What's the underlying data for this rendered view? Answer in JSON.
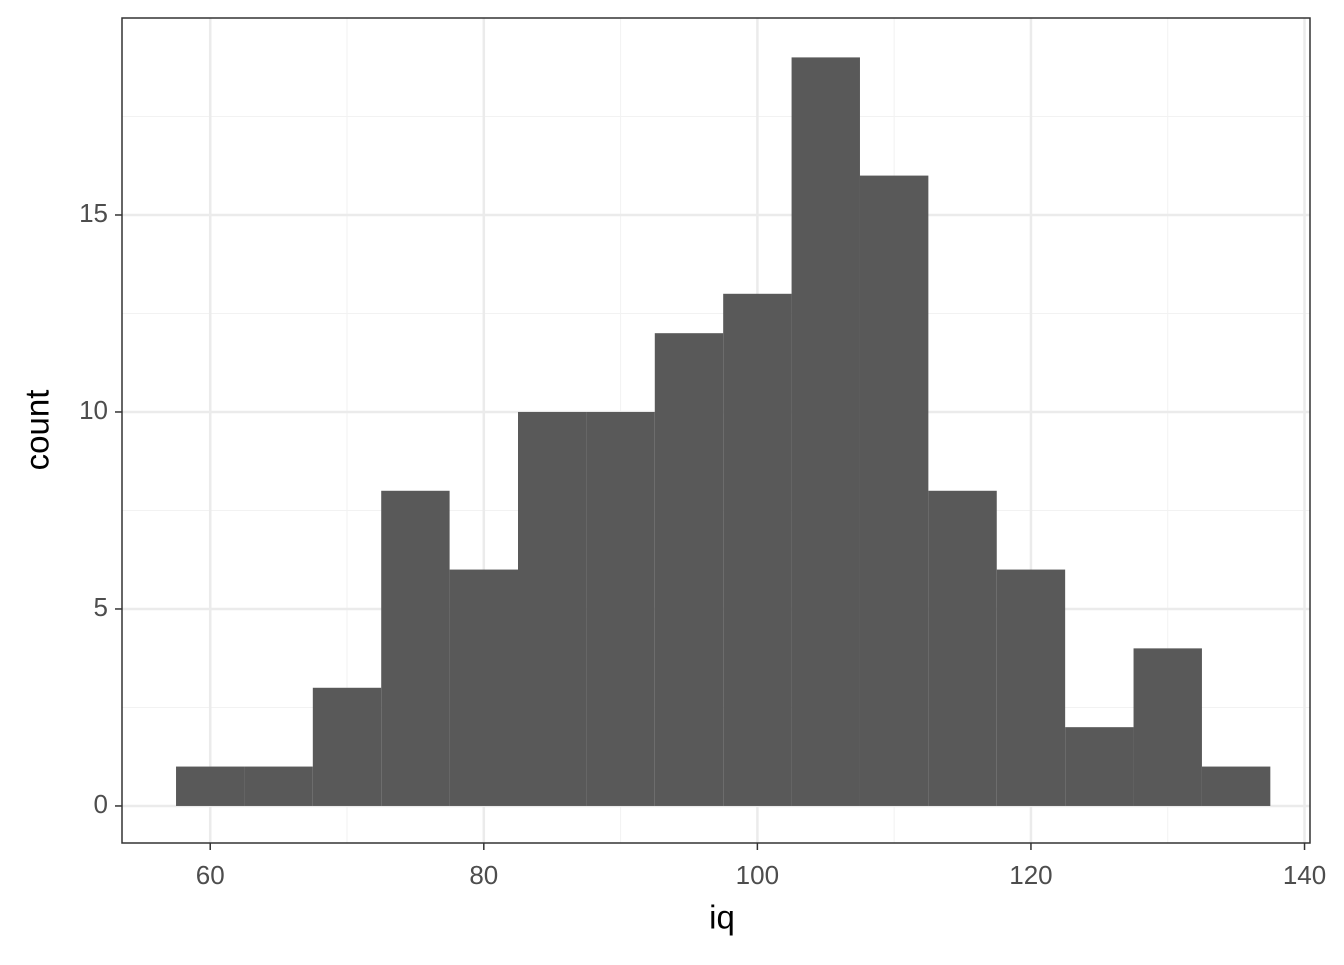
{
  "chart_data": {
    "type": "histogram",
    "x_label": "iq",
    "y_label": "count",
    "bins": [
      57.5,
      62.5,
      67.5,
      72.5,
      77.5,
      82.5,
      87.5,
      92.5,
      97.5,
      102.5,
      107.5,
      112.5,
      117.5,
      122.5,
      127.5,
      132.5,
      137.5
    ],
    "counts": [
      1,
      1,
      3,
      8,
      6,
      10,
      10,
      12,
      13,
      19,
      16,
      8,
      6,
      2,
      4,
      1
    ],
    "color": "#595959",
    "xlim": [
      53.55,
      140.4
    ],
    "ylim": [
      -0.94,
      20
    ],
    "xticks": [
      60,
      80,
      100,
      120,
      140
    ],
    "yticks": [
      0,
      5,
      10,
      15
    ],
    "xminor": [
      70,
      90,
      110,
      130
    ],
    "yminor": [
      2.5,
      7.5,
      12.5,
      17.5
    ],
    "grid": true
  }
}
